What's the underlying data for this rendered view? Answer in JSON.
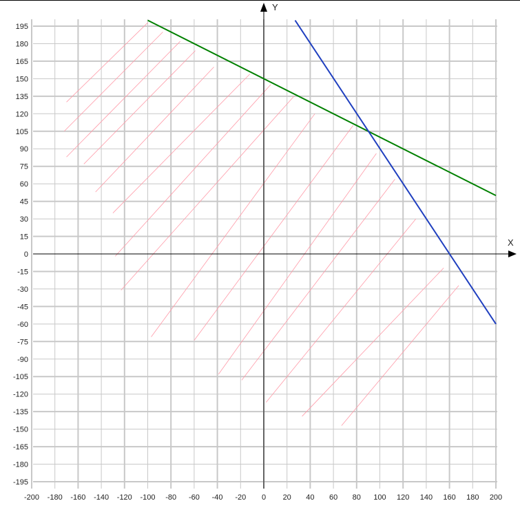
{
  "chart_data": {
    "type": "line",
    "x_axis_label": "X",
    "y_axis_label": "Y",
    "xlim": [
      -200,
      200
    ],
    "ylim": [
      -200,
      200
    ],
    "x_ticks": [
      -200,
      -180,
      -160,
      -140,
      -120,
      -100,
      -80,
      -60,
      -40,
      -20,
      0,
      20,
      40,
      60,
      80,
      100,
      120,
      140,
      160,
      180,
      200
    ],
    "y_ticks": [
      195,
      180,
      165,
      150,
      135,
      120,
      105,
      90,
      75,
      60,
      45,
      30,
      15,
      0,
      -15,
      -30,
      -45,
      -60,
      -75,
      -90,
      -105,
      -120,
      -135,
      -150,
      -165,
      -180,
      -195
    ],
    "grid": true,
    "series": [
      {
        "color": "#008000",
        "points": [
          [
            -100,
            200
          ],
          [
            200,
            50
          ]
        ]
      },
      {
        "color": "#1f3fbf",
        "points": [
          [
            27,
            200
          ],
          [
            200,
            -60
          ]
        ]
      }
    ],
    "hatch": {
      "color": "#ff9aa8",
      "segments": [
        [
          [
            -170,
            130
          ],
          [
            -100,
            198
          ]
        ],
        [
          [
            -172,
            105
          ],
          [
            -87,
            190
          ]
        ],
        [
          [
            -170,
            83
          ],
          [
            -72,
            182
          ]
        ],
        [
          [
            -155,
            77
          ],
          [
            -59,
            174
          ]
        ],
        [
          [
            -145,
            53
          ],
          [
            -43,
            160
          ]
        ],
        [
          [
            -130,
            35
          ],
          [
            -12,
            154
          ]
        ],
        [
          [
            -128,
            -2
          ],
          [
            6,
            145
          ]
        ],
        [
          [
            -123,
            -31
          ],
          [
            26,
            135
          ]
        ],
        [
          [
            -97,
            -71
          ],
          [
            44,
            120
          ]
        ],
        [
          [
            -60,
            -74
          ],
          [
            77,
            110
          ]
        ],
        [
          [
            -39,
            -103
          ],
          [
            97,
            86
          ]
        ],
        [
          [
            -19,
            -108
          ],
          [
            113,
            64
          ]
        ],
        [
          [
            2,
            -127
          ],
          [
            131,
            30
          ]
        ],
        [
          [
            33,
            -139
          ],
          [
            155,
            -12
          ]
        ],
        [
          [
            67,
            -147
          ],
          [
            168,
            -27
          ]
        ]
      ]
    }
  }
}
